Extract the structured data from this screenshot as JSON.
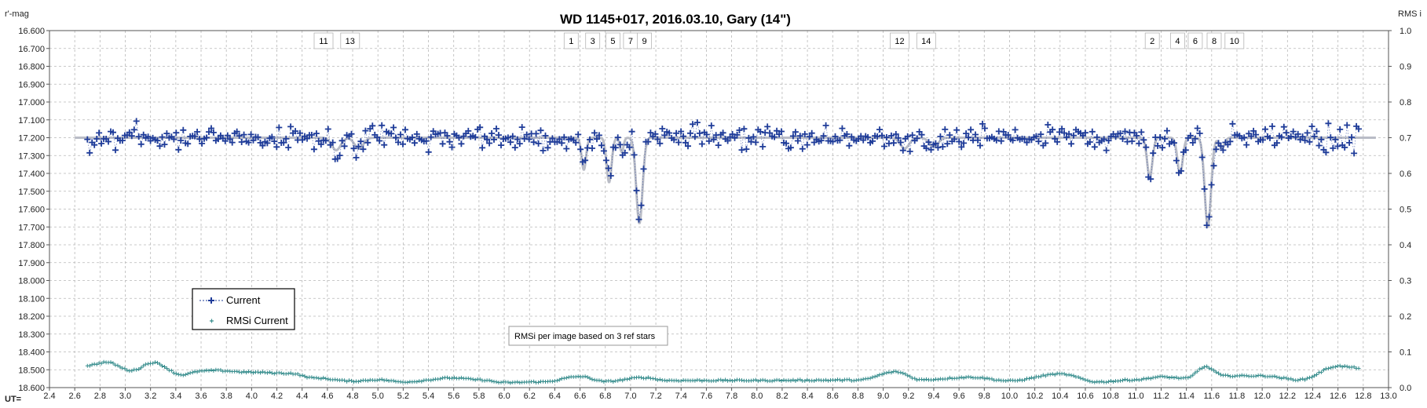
{
  "chart_data": {
    "type": "scatter",
    "title": "WD 1145+017,  2016.03.10,  Gary (14\")",
    "ylabel_left": "r'-mag",
    "ylabel_right": "RMS i",
    "xlabel": "UT=",
    "xlim": [
      2.4,
      13.0
    ],
    "ylim_left": [
      16.6,
      18.6
    ],
    "ylim_right": [
      0.0,
      1.0
    ],
    "left_inverted": true,
    "grid": true,
    "legend_placement": "lower-left",
    "x_ticks": [
      "2.4",
      "2.6",
      "2.8",
      "3.0",
      "3.2",
      "3.4",
      "3.6",
      "3.8",
      "4.0",
      "4.2",
      "4.4",
      "4.6",
      "4.8",
      "5.0",
      "5.2",
      "5.4",
      "5.6",
      "5.8",
      "6.0",
      "6.2",
      "6.4",
      "6.6",
      "6.8",
      "7.0",
      "7.2",
      "7.4",
      "7.6",
      "7.8",
      "8.0",
      "8.2",
      "8.4",
      "8.6",
      "8.8",
      "9.0",
      "9.2",
      "9.4",
      "9.6",
      "9.8",
      "10.0",
      "10.2",
      "10.4",
      "10.6",
      "10.8",
      "11.0",
      "11.2",
      "11.4",
      "11.6",
      "11.8",
      "12.0",
      "12.2",
      "12.4",
      "12.6",
      "12.8",
      "13.0"
    ],
    "y_ticks_left": [
      "16.600",
      "16.700",
      "16.800",
      "16.900",
      "17.000",
      "17.100",
      "17.200",
      "17.300",
      "17.400",
      "17.500",
      "17.600",
      "17.700",
      "17.800",
      "17.900",
      "18.000",
      "18.100",
      "18.200",
      "18.300",
      "18.400",
      "18.500",
      "18.600"
    ],
    "y_ticks_right": [
      "1.0",
      "0.9",
      "0.8",
      "0.7",
      "0.6",
      "0.5",
      "0.4",
      "0.3",
      "0.2",
      "0.1",
      "0.0"
    ],
    "annotation": "RMSi per image based on 3 ref stars",
    "dip_labels": [
      {
        "text": "11",
        "x": 4.57
      },
      {
        "text": "13",
        "x": 4.78
      },
      {
        "text": "1",
        "x": 6.53
      },
      {
        "text": "3",
        "x": 6.7
      },
      {
        "text": "5",
        "x": 6.86
      },
      {
        "text": "7",
        "x": 7.0
      },
      {
        "text": "9",
        "x": 7.11
      },
      {
        "text": "12",
        "x": 9.13
      },
      {
        "text": "14",
        "x": 9.34
      },
      {
        "text": "2",
        "x": 11.13
      },
      {
        "text": "4",
        "x": 11.33
      },
      {
        "text": "6",
        "x": 11.47
      },
      {
        "text": "8",
        "x": 11.62
      },
      {
        "text": "10",
        "x": 11.78
      }
    ],
    "series": [
      {
        "name": "Current",
        "axis": "left",
        "color": "#1F3C99",
        "baseline": 17.2,
        "dips": [
          {
            "x": 4.67,
            "depth": 0.07,
            "width": 0.05
          },
          {
            "x": 4.85,
            "depth": 0.06,
            "width": 0.05
          },
          {
            "x": 6.63,
            "depth": 0.18,
            "width": 0.025
          },
          {
            "x": 6.83,
            "depth": 0.25,
            "width": 0.028
          },
          {
            "x": 6.93,
            "depth": 0.08,
            "width": 0.02
          },
          {
            "x": 7.07,
            "depth": 0.48,
            "width": 0.035
          },
          {
            "x": 9.17,
            "depth": 0.06,
            "width": 0.05
          },
          {
            "x": 9.4,
            "depth": 0.05,
            "width": 0.05
          },
          {
            "x": 11.11,
            "depth": 0.22,
            "width": 0.03
          },
          {
            "x": 11.35,
            "depth": 0.2,
            "width": 0.03
          },
          {
            "x": 11.57,
            "depth": 0.5,
            "width": 0.035
          },
          {
            "x": 11.68,
            "depth": 0.06,
            "width": 0.03
          }
        ],
        "x_start": 2.7,
        "x_end": 12.78,
        "noise": 0.06
      },
      {
        "name": "RMSi Current",
        "axis": "right",
        "color": "#3A8F8F",
        "knots": [
          [
            2.7,
            0.062
          ],
          [
            2.85,
            0.071
          ],
          [
            3.05,
            0.048
          ],
          [
            3.22,
            0.07
          ],
          [
            3.45,
            0.036
          ],
          [
            3.6,
            0.046
          ],
          [
            3.7,
            0.048
          ],
          [
            4.0,
            0.043
          ],
          [
            4.3,
            0.04
          ],
          [
            4.5,
            0.027
          ],
          [
            4.8,
            0.018
          ],
          [
            5.0,
            0.022
          ],
          [
            5.2,
            0.016
          ],
          [
            5.6,
            0.027
          ],
          [
            5.8,
            0.022
          ],
          [
            6.0,
            0.014
          ],
          [
            6.3,
            0.016
          ],
          [
            6.6,
            0.031
          ],
          [
            6.8,
            0.017
          ],
          [
            7.1,
            0.028
          ],
          [
            7.3,
            0.02
          ],
          [
            8.0,
            0.02
          ],
          [
            8.8,
            0.021
          ],
          [
            9.1,
            0.044
          ],
          [
            9.3,
            0.022
          ],
          [
            9.7,
            0.029
          ],
          [
            10.0,
            0.019
          ],
          [
            10.4,
            0.038
          ],
          [
            10.7,
            0.016
          ],
          [
            11.0,
            0.022
          ],
          [
            11.2,
            0.03
          ],
          [
            11.4,
            0.026
          ],
          [
            11.55,
            0.058
          ],
          [
            11.7,
            0.033
          ],
          [
            12.0,
            0.033
          ],
          [
            12.3,
            0.022
          ],
          [
            12.6,
            0.06
          ],
          [
            12.78,
            0.055
          ]
        ]
      }
    ]
  },
  "legend": {
    "current": "Current",
    "rmsi": "RMSi Current"
  }
}
